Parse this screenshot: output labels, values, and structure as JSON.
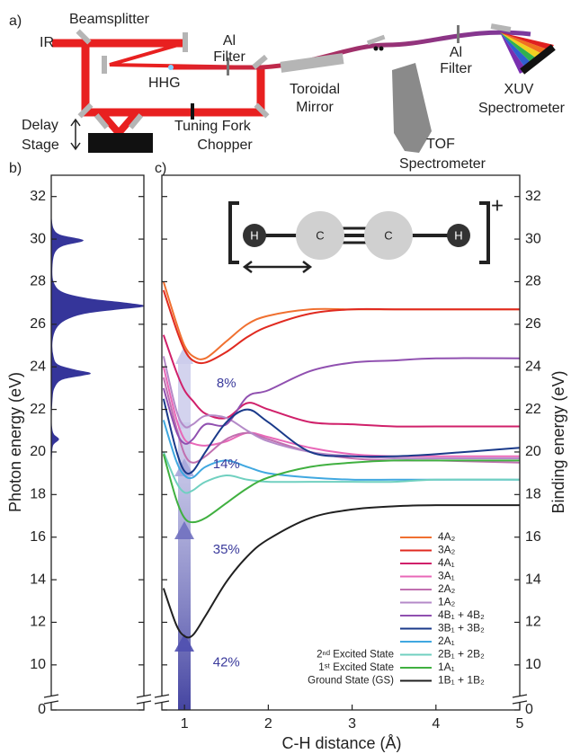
{
  "panel_a": {
    "label": "a)",
    "labels": [
      [
        "IR"
      ],
      [
        "Beamsplitter"
      ],
      [
        "Al",
        "Filter"
      ],
      [
        "HHG"
      ],
      [
        "Delay",
        "Stage"
      ],
      [
        "Tuning Fork",
        "Chopper"
      ],
      [
        "Toroidal",
        "Mirror"
      ],
      [
        "Al",
        "Filter"
      ],
      [
        "XUV",
        "Spectrometer"
      ],
      [
        "TOF",
        "Spectrometer"
      ]
    ]
  },
  "chart_data": [
    {
      "type": "area",
      "panel_label": "b)",
      "y_label": "Photon energy (eV)",
      "y": [
        19.5,
        20.2,
        20.4,
        20.6,
        20.8,
        21.0,
        21.5,
        22.5,
        23.0,
        23.4,
        23.6,
        23.7,
        23.85,
        24.1,
        24.5,
        25.2,
        25.8,
        26.2,
        26.5,
        26.7,
        26.85,
        27.0,
        27.2,
        27.5,
        28.0,
        28.8,
        29.4,
        29.7,
        29.9,
        30.0,
        30.2,
        30.5,
        31.0
      ],
      "values": [
        0,
        0.01,
        0.03,
        0.08,
        0.03,
        0.01,
        0,
        0.01,
        0.03,
        0.11,
        0.33,
        0.42,
        0.26,
        0.07,
        0.02,
        0.01,
        0.05,
        0.15,
        0.35,
        0.7,
        1.0,
        0.8,
        0.4,
        0.12,
        0.02,
        0.01,
        0.04,
        0.13,
        0.33,
        0.3,
        0.09,
        0.02,
        0
      ],
      "color": "#35359a",
      "xlim": [
        0,
        1
      ],
      "ylim": [
        0,
        33
      ],
      "axis_break": [
        0.4,
        8.6
      ],
      "yticks": [
        0,
        10,
        12,
        14,
        16,
        18,
        20,
        22,
        24,
        26,
        28,
        30,
        32
      ]
    },
    {
      "type": "line",
      "panel_label": "c)",
      "x_label": "C-H distance (Å)",
      "y2_label": "Binding energy (eV)",
      "x": [
        0.75,
        0.9,
        1.0,
        1.1,
        1.25,
        1.5,
        1.75,
        2.0,
        2.5,
        3,
        3.5,
        4,
        5
      ],
      "series": [
        {
          "name": "4A₂",
          "color": "#f07030",
          "values": [
            28.0,
            26.1,
            25.0,
            24.5,
            24.4,
            25.2,
            26.0,
            26.4,
            26.7,
            26.7,
            26.7,
            26.7,
            26.7
          ]
        },
        {
          "name": "3A₂",
          "color": "#e02a20",
          "values": [
            27.6,
            25.8,
            24.8,
            24.3,
            24.2,
            24.7,
            25.4,
            25.9,
            26.5,
            26.7,
            26.7,
            26.7,
            26.7
          ]
        },
        {
          "name": "4A₁",
          "color": "#d0206a",
          "values": [
            25.5,
            23.8,
            22.9,
            22.4,
            21.8,
            21.6,
            22.3,
            22.0,
            21.4,
            21.3,
            21.2,
            21.2,
            21.2
          ]
        },
        {
          "name": "3A₁",
          "color": "#e868b8",
          "values": [
            24.0,
            21.6,
            20.6,
            20.4,
            20.3,
            20.5,
            20.9,
            20.7,
            20.2,
            19.9,
            19.8,
            19.8,
            19.8
          ]
        },
        {
          "name": "2A₂",
          "color": "#c070b0",
          "values": [
            23.5,
            21.2,
            19.9,
            19.5,
            19.8,
            20.6,
            20.9,
            20.6,
            20.0,
            19.7,
            19.6,
            19.6,
            19.5
          ]
        },
        {
          "name": "1A₂",
          "color": "#b48ac8",
          "values": [
            24.5,
            22.0,
            21.2,
            21.3,
            21.7,
            21.6,
            21.0,
            20.5,
            20.0,
            19.8,
            19.7,
            19.7,
            19.7
          ]
        },
        {
          "name": "4B₁ + 4B₂",
          "color": "#9050b0",
          "values": [
            23.0,
            21.0,
            20.4,
            20.6,
            21.3,
            21.3,
            22.6,
            22.9,
            23.8,
            24.2,
            24.3,
            24.4,
            24.4
          ]
        },
        {
          "name": "3B₁ + 3B₂",
          "color": "#1a3a8a",
          "values": [
            22.5,
            20.1,
            19.1,
            19.1,
            20.0,
            21.4,
            22.0,
            21.4,
            20.0,
            19.8,
            19.8,
            19.9,
            20.2
          ]
        },
        {
          "name": "2A₁",
          "color": "#40a8e0",
          "values": [
            21.5,
            19.6,
            18.9,
            18.8,
            19.3,
            19.6,
            19.3,
            19.0,
            18.8,
            18.7,
            18.7,
            18.7,
            18.7
          ]
        },
        {
          "name": "2B₁ + 2B₂",
          "color": "#70d0c0",
          "values": [
            20.0,
            18.6,
            18.1,
            18.2,
            18.6,
            18.9,
            18.7,
            18.6,
            18.6,
            18.6,
            18.6,
            18.7,
            18.7
          ]
        },
        {
          "name": "1A₁",
          "color": "#40b040",
          "values": [
            19.9,
            17.8,
            16.9,
            16.7,
            16.9,
            17.6,
            18.3,
            18.8,
            19.3,
            19.5,
            19.6,
            19.6,
            19.6
          ]
        },
        {
          "name": "1B₁ + 1B₂",
          "color": "#202020",
          "values": [
            13.6,
            11.9,
            11.35,
            11.4,
            12.3,
            13.9,
            15.1,
            15.9,
            16.9,
            17.3,
            17.45,
            17.5,
            17.5
          ]
        }
      ],
      "legend_notes": [
        {
          "text": "2ⁿᵈ Excited State",
          "series": 9
        },
        {
          "text": "1ˢᵗ Excited State",
          "series": 10
        },
        {
          "text": "Ground State (GS)",
          "series": 11
        }
      ],
      "annotations": [
        {
          "text": "8%",
          "x": 1.5,
          "y": 23.2
        },
        {
          "text": "14%",
          "x": 1.5,
          "y": 19.4
        },
        {
          "text": "35%",
          "x": 1.5,
          "y": 15.4
        },
        {
          "text": "42%",
          "x": 1.5,
          "y": 10.1
        }
      ],
      "inset": {
        "atoms": [
          "H",
          "C",
          "C",
          "H"
        ],
        "charge": "+"
      },
      "xlim": [
        0.73,
        5
      ],
      "xticks": [
        1,
        2,
        3,
        4,
        5
      ],
      "ylim": [
        0,
        33
      ],
      "axis_break": [
        0.4,
        8.6
      ],
      "yticks": [
        0,
        10,
        12,
        14,
        16,
        18,
        20,
        22,
        24,
        26,
        28,
        30,
        32
      ],
      "y2lim": [
        0,
        33
      ],
      "y2ticks": [
        0,
        10,
        12,
        14,
        16,
        18,
        20,
        22,
        24,
        26,
        28,
        30,
        32
      ]
    }
  ]
}
